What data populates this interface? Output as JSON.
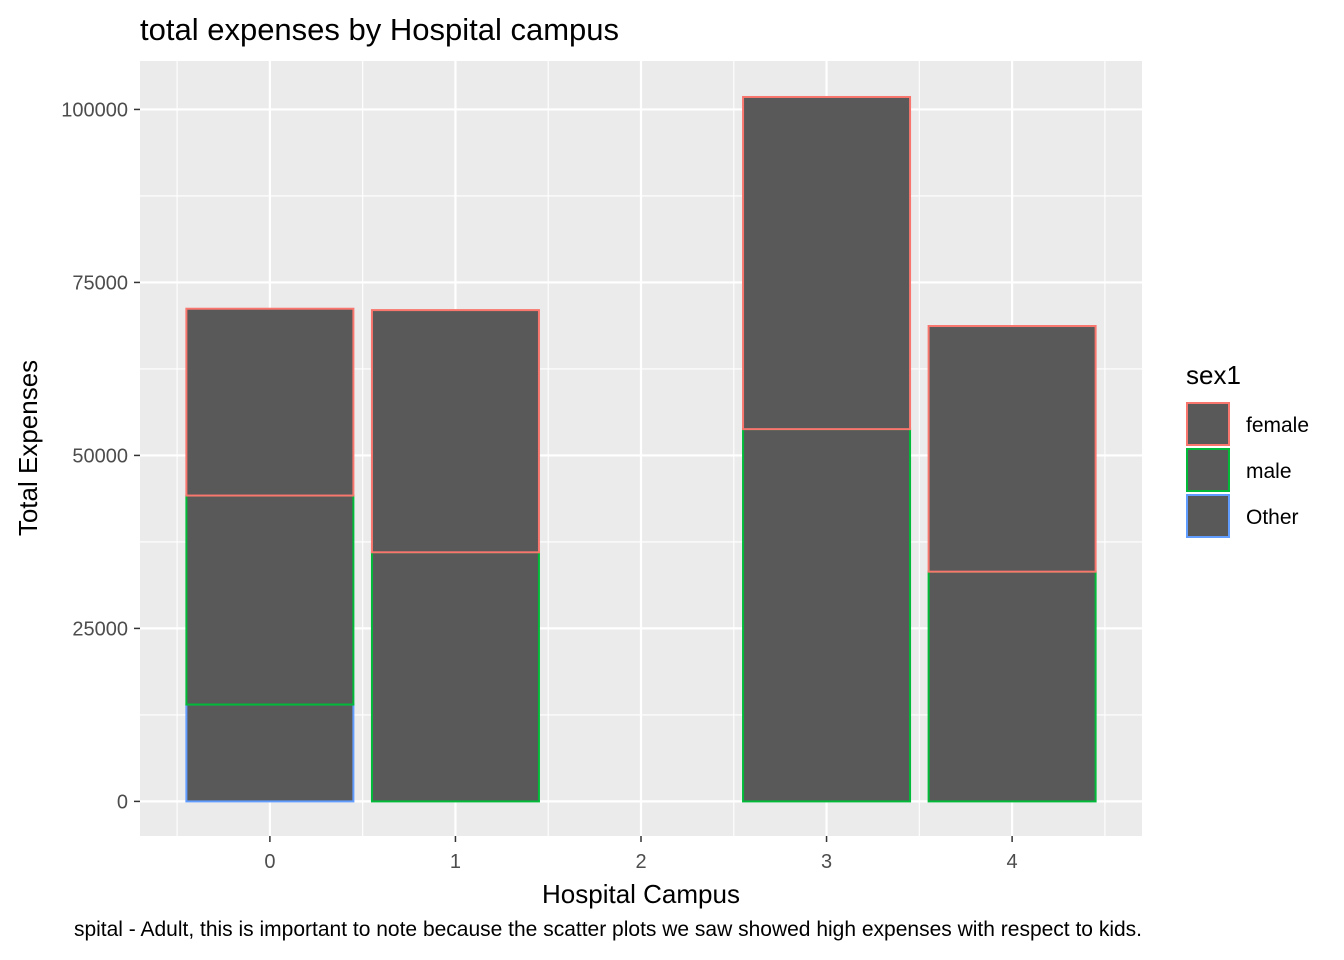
{
  "chart_data": {
    "type": "bar",
    "stacked": true,
    "title": "total expenses by Hospital campus",
    "xlabel": "Hospital Campus",
    "ylabel": "Total Expenses",
    "categories": [
      "0",
      "1",
      "2",
      "3",
      "4"
    ],
    "ylim": [
      -5000,
      107000
    ],
    "y_ticks": [
      0,
      25000,
      50000,
      75000,
      100000
    ],
    "y_tick_labels": [
      "0",
      "25000",
      "50000",
      "75000",
      "100000"
    ],
    "grid": true,
    "bar_fill": "#595959",
    "panel_background": "#ebebeb",
    "legend": {
      "title": "sex1",
      "position": "right"
    },
    "series": [
      {
        "name": "female",
        "color": "#f8766d",
        "values": [
          27000,
          35000,
          0,
          48000,
          35500
        ]
      },
      {
        "name": "male",
        "color": "#00ba38",
        "values": [
          30200,
          36000,
          0,
          53800,
          33200
        ]
      },
      {
        "name": "Other",
        "color": "#619cff",
        "values": [
          14000,
          0,
          0,
          0,
          0
        ]
      }
    ],
    "totals": [
      71200,
      71000,
      0,
      101800,
      68700
    ]
  },
  "caption": "spital - Adult, this is important to note because the scatter plots we saw showed high expenses with respect to kids."
}
